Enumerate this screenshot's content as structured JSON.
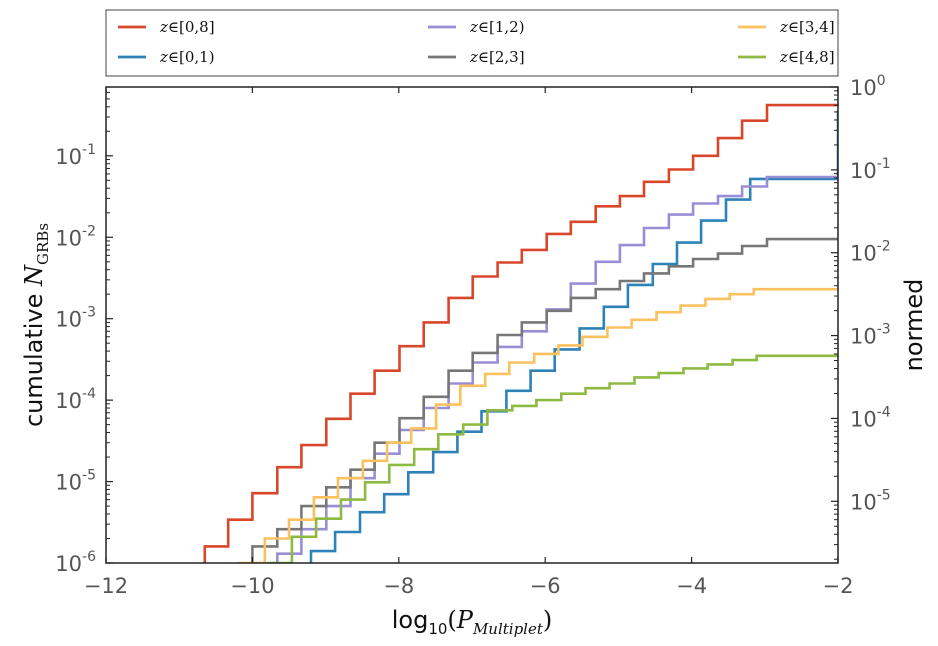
{
  "chart_data": {
    "type": "line",
    "step": true,
    "x_scale": "linear",
    "y_scale": "log",
    "xlim": [
      -12,
      -2
    ],
    "ylim": [
      1e-06,
      0.7
    ],
    "right_ylim": [
      1.8e-06,
      1.0
    ],
    "x_ticks": [
      -12,
      -10,
      -8,
      -6,
      -4,
      -2
    ],
    "x_tick_labels": [
      "−12",
      "−10",
      "−8",
      "−6",
      "−4",
      "−2"
    ],
    "y_ticks": [
      {
        "value": 1e-06,
        "base": "10",
        "exp": "-6"
      },
      {
        "value": 1e-05,
        "base": "10",
        "exp": "-5"
      },
      {
        "value": 0.0001,
        "base": "10",
        "exp": "-4"
      },
      {
        "value": 0.001,
        "base": "10",
        "exp": "-3"
      },
      {
        "value": 0.01,
        "base": "10",
        "exp": "-2"
      },
      {
        "value": 0.1,
        "base": "10",
        "exp": "-1"
      }
    ],
    "right_y_ticks": [
      {
        "value": 1e-05,
        "base": "10",
        "exp": "-5"
      },
      {
        "value": 0.0001,
        "base": "10",
        "exp": "-4"
      },
      {
        "value": 0.001,
        "base": "10",
        "exp": "-3"
      },
      {
        "value": 0.01,
        "base": "10",
        "exp": "-2"
      },
      {
        "value": 0.1,
        "base": "10",
        "exp": "-1"
      },
      {
        "value": 1,
        "base": "10",
        "exp": "0"
      }
    ],
    "xlabel": {
      "prefix": "log",
      "sub": "10",
      "open": "(",
      "var": "P",
      "var_sub": "Multiplet",
      "close": ")"
    },
    "ylabel": {
      "prefix": "cumulative ",
      "var": "N",
      "var_sub": "GRBs"
    },
    "right_ylabel": "normed",
    "grid": false,
    "legend_position": "top, outside, 3 columns",
    "series": [
      {
        "name": "z∈[0,8]",
        "label_var": "z",
        "label_rest": "∈[0,8]",
        "color": "#d9472b",
        "x": [
          -10.65,
          -10.33,
          -10.0,
          -9.66,
          -9.33,
          -8.99,
          -8.66,
          -8.33,
          -7.99,
          -7.66,
          -7.32,
          -6.99,
          -6.65,
          -6.32,
          -5.98,
          -5.65,
          -5.31,
          -4.98,
          -4.65,
          -4.31,
          -3.98,
          -3.64,
          -3.31,
          -2.97,
          -2.0
        ],
        "y": [
          1.6e-06,
          3.4e-06,
          7.2e-06,
          1.5e-05,
          2.8e-05,
          5.9e-05,
          0.00012,
          0.00023,
          0.00046,
          0.0009,
          0.0018,
          0.0033,
          0.0049,
          0.007,
          0.011,
          0.0155,
          0.024,
          0.032,
          0.048,
          0.068,
          0.1,
          0.165,
          0.27,
          0.42,
          0.42
        ]
      },
      {
        "name": "z∈[0,1)",
        "label_var": "z",
        "label_rest": "∈[0,1)",
        "color": "#2d82b7",
        "x": [
          -9.2,
          -8.87,
          -8.53,
          -8.2,
          -7.87,
          -7.53,
          -7.2,
          -6.87,
          -6.53,
          -6.2,
          -5.87,
          -5.53,
          -5.2,
          -4.87,
          -4.53,
          -4.2,
          -3.87,
          -3.53,
          -3.2,
          -2.0
        ],
        "y": [
          1.4e-06,
          2.4e-06,
          4.2e-06,
          7e-06,
          1.3e-05,
          2.3e-05,
          4.1e-05,
          7.3e-05,
          0.00013,
          0.00023,
          0.00042,
          0.00076,
          0.0014,
          0.0026,
          0.0047,
          0.0086,
          0.016,
          0.029,
          0.052,
          0.36
        ]
      },
      {
        "name": "z∈[1,2)",
        "label_var": "z",
        "label_rest": "∈[1,2)",
        "color": "#988ed5",
        "x": [
          -9.66,
          -9.33,
          -8.99,
          -8.66,
          -8.33,
          -7.99,
          -7.66,
          -7.32,
          -6.99,
          -6.65,
          -6.32,
          -5.98,
          -5.65,
          -5.31,
          -4.98,
          -4.65,
          -4.31,
          -3.98,
          -3.64,
          -3.31,
          -2.97,
          -2.0
        ],
        "y": [
          1.3e-06,
          2.6e-06,
          5e-06,
          1.1e-05,
          2.2e-05,
          4.3e-05,
          8e-05,
          0.00016,
          0.00029,
          0.00045,
          0.0007,
          0.0013,
          0.0027,
          0.005,
          0.008,
          0.013,
          0.019,
          0.026,
          0.032,
          0.042,
          0.055,
          0.055
        ]
      },
      {
        "name": "z∈[2,3]",
        "label_var": "z",
        "label_rest": "∈[2,3]",
        "color": "#777777",
        "x": [
          -10.0,
          -9.66,
          -9.33,
          -8.99,
          -8.66,
          -8.33,
          -7.99,
          -7.66,
          -7.32,
          -6.99,
          -6.65,
          -6.32,
          -5.98,
          -5.65,
          -5.31,
          -4.98,
          -4.65,
          -4.31,
          -3.98,
          -3.64,
          -3.31,
          -2.97,
          -2.0
        ],
        "y": [
          1.6e-06,
          2.6e-06,
          5e-06,
          8.5e-06,
          1.4e-05,
          3e-05,
          6e-05,
          0.00011,
          0.00023,
          0.00038,
          0.00063,
          0.0009,
          0.00125,
          0.0018,
          0.0023,
          0.0029,
          0.0036,
          0.0044,
          0.0054,
          0.0063,
          0.0078,
          0.0095,
          0.0095
        ]
      },
      {
        "name": "z∈[3,4]",
        "label_var": "z",
        "label_rest": "∈[3,4]",
        "color": "#fbc15e",
        "x": [
          -10.2,
          -9.83,
          -9.5,
          -9.16,
          -8.83,
          -8.49,
          -8.16,
          -7.83,
          -7.49,
          -7.16,
          -6.82,
          -6.49,
          -6.15,
          -5.82,
          -5.49,
          -5.15,
          -4.82,
          -4.48,
          -4.15,
          -3.81,
          -3.48,
          -3.15,
          -2.0
        ],
        "y": [
          1e-06,
          2e-06,
          3.4e-06,
          6.4e-06,
          1.1e-05,
          1.8e-05,
          3e-05,
          4.5e-05,
          8.8e-05,
          0.00015,
          0.00021,
          0.00029,
          0.00037,
          0.00047,
          0.0006,
          0.00078,
          0.00097,
          0.0012,
          0.00145,
          0.00175,
          0.002,
          0.0023,
          0.0023
        ]
      },
      {
        "name": "z∈[4,8]",
        "label_var": "z",
        "label_rest": "∈[4,8]",
        "color": "#8eba42",
        "x": [
          -9.8,
          -9.46,
          -9.13,
          -8.79,
          -8.46,
          -8.13,
          -7.79,
          -7.46,
          -7.12,
          -6.79,
          -6.45,
          -6.12,
          -5.78,
          -5.45,
          -5.12,
          -4.78,
          -4.45,
          -4.11,
          -3.78,
          -3.44,
          -3.11,
          -2.0
        ],
        "y": [
          1e-06,
          2.1e-06,
          3.5e-06,
          6e-06,
          9.8e-06,
          1.6e-05,
          2.5e-05,
          3.8e-05,
          5e-05,
          7.5e-05,
          8.5e-05,
          0.0001,
          0.00012,
          0.00014,
          0.00016,
          0.00019,
          0.000215,
          0.000245,
          0.000275,
          0.00031,
          0.00035,
          0.00035
        ]
      }
    ]
  }
}
